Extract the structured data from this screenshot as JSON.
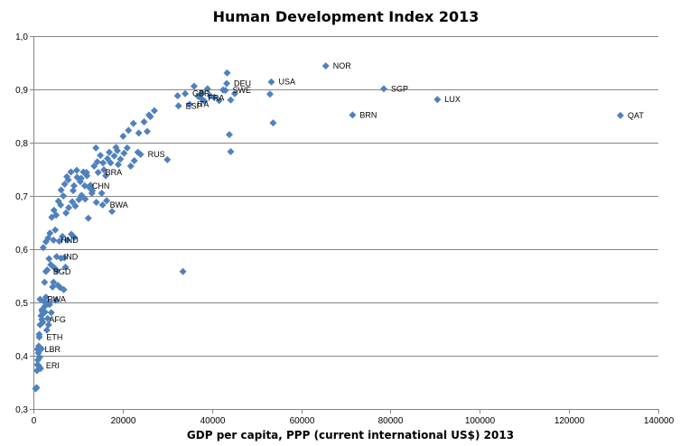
{
  "chart_data": {
    "type": "scatter",
    "title": "Human Development Index 2013",
    "xlabel": "GDP per capita, PPP (current international US$) 2013",
    "ylabel": "",
    "xlim": [
      0,
      140000
    ],
    "ylim": [
      0.3,
      1.0
    ],
    "xticks": [
      0,
      20000,
      40000,
      60000,
      80000,
      100000,
      120000,
      140000
    ],
    "xtick_labels": [
      "0",
      "20000",
      "40000",
      "60000",
      "80000",
      "100000",
      "120000",
      "140000"
    ],
    "yticks": [
      0.3,
      0.4,
      0.5,
      0.6,
      0.7,
      0.8,
      0.9,
      1.0
    ],
    "ytick_labels": [
      "0,3",
      "0,4",
      "0,5",
      "0,6",
      "0,7",
      "0,8",
      "0,9",
      "1,0"
    ],
    "grid": "horizontal",
    "marker_color": "#4f81bd",
    "labeled_points": [
      {
        "label": "NOR",
        "x": 65500,
        "y": 0.944
      },
      {
        "label": "SGP",
        "x": 78500,
        "y": 0.901
      },
      {
        "label": "LUX",
        "x": 90500,
        "y": 0.881
      },
      {
        "label": "QAT",
        "x": 131500,
        "y": 0.851
      },
      {
        "label": "BRN",
        "x": 71500,
        "y": 0.852
      },
      {
        "label": "USA",
        "x": 53300,
        "y": 0.914
      },
      {
        "label": "DEU",
        "x": 43300,
        "y": 0.911
      },
      {
        "label": "GBR",
        "x": 34000,
        "y": 0.892
      },
      {
        "label": "FRA",
        "x": 37500,
        "y": 0.884
      },
      {
        "label": "ITA",
        "x": 35000,
        "y": 0.872
      },
      {
        "label": "SWE",
        "x": 43000,
        "y": 0.898
      },
      {
        "label": "ESP",
        "x": 32500,
        "y": 0.869
      },
      {
        "label": "RUS",
        "x": 24000,
        "y": 0.778
      },
      {
        "label": "BRA",
        "x": 14500,
        "y": 0.744
      },
      {
        "label": "CHN",
        "x": 11500,
        "y": 0.719
      },
      {
        "label": "BWA",
        "x": 15500,
        "y": 0.683
      },
      {
        "label": "HND",
        "x": 4500,
        "y": 0.617
      },
      {
        "label": "IND",
        "x": 5200,
        "y": 0.586
      },
      {
        "label": "BGD",
        "x": 2800,
        "y": 0.558
      },
      {
        "label": "RWA",
        "x": 1500,
        "y": 0.506
      },
      {
        "label": "AFG",
        "x": 1900,
        "y": 0.468
      },
      {
        "label": "ETH",
        "x": 1300,
        "y": 0.435
      },
      {
        "label": "LBR",
        "x": 900,
        "y": 0.412
      },
      {
        "label": "ERI",
        "x": 1200,
        "y": 0.381
      }
    ],
    "points": [
      [
        500,
        0.338
      ],
      [
        700,
        0.34
      ],
      [
        800,
        0.372
      ],
      [
        1000,
        0.392
      ],
      [
        1100,
        0.405
      ],
      [
        1200,
        0.418
      ],
      [
        1300,
        0.44
      ],
      [
        1500,
        0.458
      ],
      [
        1700,
        0.475
      ],
      [
        1900,
        0.486
      ],
      [
        2100,
        0.463
      ],
      [
        2200,
        0.479
      ],
      [
        2400,
        0.502
      ],
      [
        2600,
        0.493
      ],
      [
        2800,
        0.51
      ],
      [
        3000,
        0.448
      ],
      [
        3200,
        0.47
      ],
      [
        3400,
        0.5
      ],
      [
        3600,
        0.496
      ],
      [
        4000,
        0.481
      ],
      [
        4300,
        0.529
      ],
      [
        4500,
        0.538
      ],
      [
        5000,
        0.504
      ],
      [
        5500,
        0.532
      ],
      [
        6000,
        0.528
      ],
      [
        6800,
        0.524
      ],
      [
        7200,
        0.566
      ],
      [
        2500,
        0.538
      ],
      [
        3100,
        0.561
      ],
      [
        3500,
        0.582
      ],
      [
        3900,
        0.571
      ],
      [
        4700,
        0.565
      ],
      [
        5300,
        0.56
      ],
      [
        6200,
        0.583
      ],
      [
        6900,
        0.584
      ],
      [
        2200,
        0.603
      ],
      [
        2800,
        0.614
      ],
      [
        3300,
        0.621
      ],
      [
        3700,
        0.63
      ],
      [
        4900,
        0.636
      ],
      [
        5800,
        0.615
      ],
      [
        6500,
        0.624
      ],
      [
        7600,
        0.617
      ],
      [
        8500,
        0.628
      ],
      [
        9200,
        0.622
      ],
      [
        4100,
        0.66
      ],
      [
        4600,
        0.673
      ],
      [
        5100,
        0.664
      ],
      [
        5600,
        0.69
      ],
      [
        6100,
        0.683
      ],
      [
        6700,
        0.7
      ],
      [
        7300,
        0.668
      ],
      [
        7900,
        0.678
      ],
      [
        8700,
        0.689
      ],
      [
        9400,
        0.681
      ],
      [
        10200,
        0.693
      ],
      [
        10800,
        0.701
      ],
      [
        11600,
        0.694
      ],
      [
        12300,
        0.658
      ],
      [
        13200,
        0.71
      ],
      [
        14100,
        0.688
      ],
      [
        15300,
        0.705
      ],
      [
        16400,
        0.691
      ],
      [
        17600,
        0.671
      ],
      [
        6200,
        0.711
      ],
      [
        7000,
        0.722
      ],
      [
        7800,
        0.73
      ],
      [
        8400,
        0.745
      ],
      [
        9100,
        0.719
      ],
      [
        9800,
        0.735
      ],
      [
        10500,
        0.727
      ],
      [
        11200,
        0.745
      ],
      [
        12000,
        0.738
      ],
      [
        12800,
        0.72
      ],
      [
        13600,
        0.756
      ],
      [
        14300,
        0.764
      ],
      [
        15000,
        0.776
      ],
      [
        15800,
        0.749
      ],
      [
        16600,
        0.77
      ],
      [
        17300,
        0.762
      ],
      [
        18100,
        0.775
      ],
      [
        18800,
        0.785
      ],
      [
        19500,
        0.769
      ],
      [
        20300,
        0.78
      ],
      [
        21000,
        0.79
      ],
      [
        21800,
        0.756
      ],
      [
        22600,
        0.766
      ],
      [
        23400,
        0.782
      ],
      [
        14000,
        0.79
      ],
      [
        15600,
        0.762
      ],
      [
        17000,
        0.782
      ],
      [
        18500,
        0.791
      ],
      [
        20100,
        0.812
      ],
      [
        21300,
        0.823
      ],
      [
        22400,
        0.836
      ],
      [
        23600,
        0.818
      ],
      [
        24800,
        0.839
      ],
      [
        25900,
        0.852
      ],
      [
        27100,
        0.86
      ],
      [
        25500,
        0.821
      ],
      [
        26200,
        0.849
      ],
      [
        30000,
        0.768
      ],
      [
        33500,
        0.558
      ],
      [
        36000,
        0.906
      ],
      [
        37800,
        0.893
      ],
      [
        39000,
        0.901
      ],
      [
        40500,
        0.885
      ],
      [
        41600,
        0.879
      ],
      [
        42500,
        0.899
      ],
      [
        43400,
        0.931
      ],
      [
        44200,
        0.88
      ],
      [
        45100,
        0.892
      ],
      [
        53000,
        0.891
      ],
      [
        53700,
        0.837
      ],
      [
        43900,
        0.815
      ],
      [
        44200,
        0.783
      ],
      [
        32300,
        0.888
      ],
      [
        36900,
        0.887
      ],
      [
        38300,
        0.878
      ],
      [
        39600,
        0.888
      ],
      [
        2000,
        0.483
      ],
      [
        2600,
        0.482
      ],
      [
        1800,
        0.413
      ],
      [
        1400,
        0.397
      ],
      [
        900,
        0.383
      ],
      [
        1600,
        0.376
      ],
      [
        3400,
        0.458
      ],
      [
        10700,
        0.733
      ],
      [
        11900,
        0.744
      ],
      [
        13100,
        0.705
      ],
      [
        8900,
        0.71
      ],
      [
        7500,
        0.736
      ],
      [
        9700,
        0.748
      ],
      [
        12400,
        0.717
      ],
      [
        16200,
        0.738
      ],
      [
        19000,
        0.759
      ]
    ]
  }
}
